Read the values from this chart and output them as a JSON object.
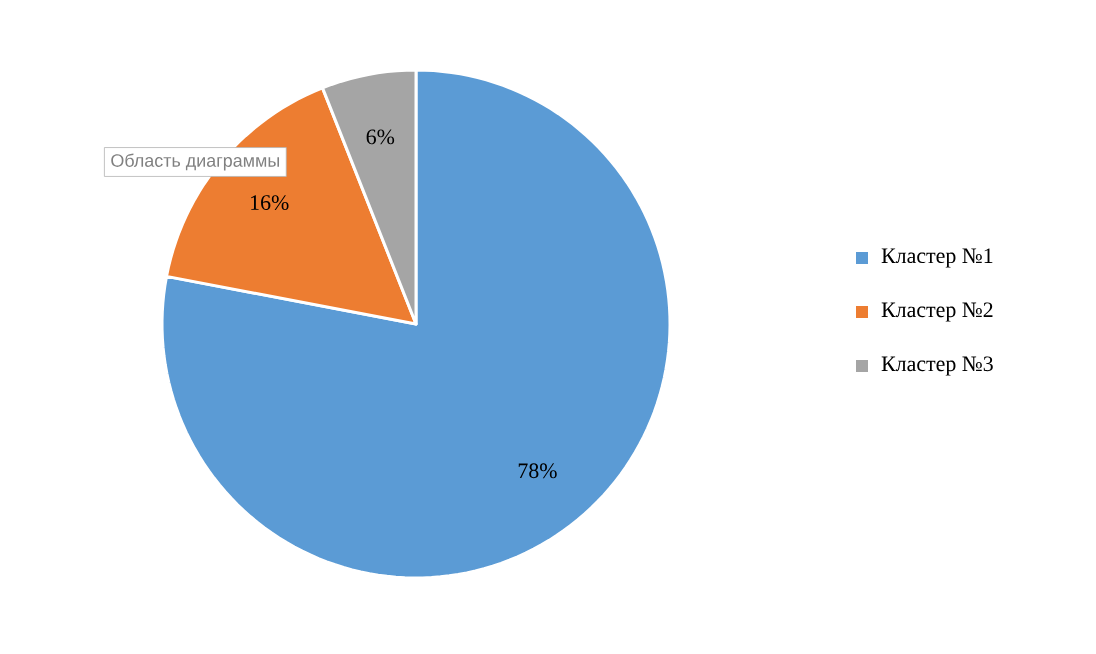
{
  "chart_data": {
    "type": "pie",
    "categories": [
      "Кластер №1",
      "Кластер №2",
      "Кластер №3"
    ],
    "values": [
      78,
      16,
      6
    ],
    "colors": [
      "#5b9bd5",
      "#ed7d31",
      "#a5a5a5"
    ],
    "value_labels": [
      "78%",
      "16%",
      "6%"
    ],
    "legend": "right",
    "annotations": [
      "Область диаграммы"
    ]
  }
}
